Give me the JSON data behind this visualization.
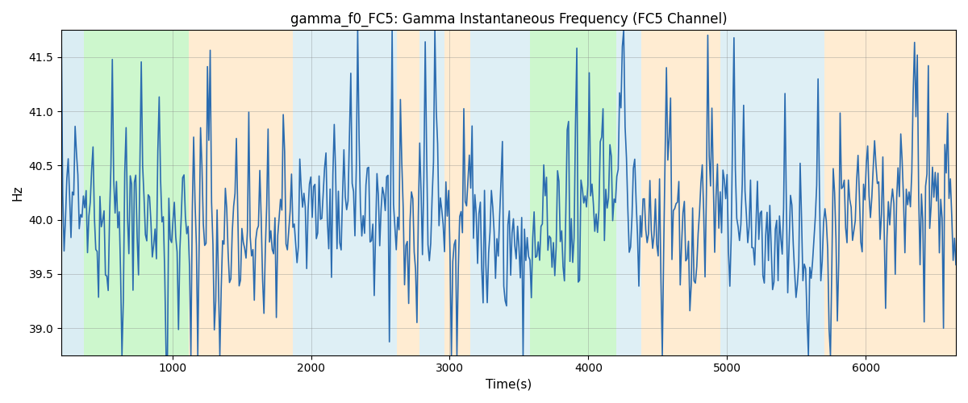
{
  "title": "gamma_f0_FC5: Gamma Instantaneous Frequency (FC5 Channel)",
  "xlabel": "Time(s)",
  "ylabel": "Hz",
  "xlim": [
    200,
    6650
  ],
  "ylim": [
    38.75,
    41.75
  ],
  "xticks": [
    1000,
    2000,
    3000,
    4000,
    5000,
    6000
  ],
  "yticks": [
    39.0,
    39.5,
    40.0,
    40.5,
    41.0,
    41.5
  ],
  "line_color": "#2b6cb0",
  "line_width": 1.2,
  "bg_bands": [
    {
      "xmin": 200,
      "xmax": 360,
      "color": "#add8e6",
      "alpha": 0.45
    },
    {
      "xmin": 360,
      "xmax": 1120,
      "color": "#90ee90",
      "alpha": 0.45
    },
    {
      "xmin": 1120,
      "xmax": 1870,
      "color": "#ffdead",
      "alpha": 0.55
    },
    {
      "xmin": 1870,
      "xmax": 2620,
      "color": "#add8e6",
      "alpha": 0.4
    },
    {
      "xmin": 2620,
      "xmax": 2780,
      "color": "#ffdead",
      "alpha": 0.55
    },
    {
      "xmin": 2780,
      "xmax": 2960,
      "color": "#add8e6",
      "alpha": 0.4
    },
    {
      "xmin": 2960,
      "xmax": 3150,
      "color": "#ffdead",
      "alpha": 0.55
    },
    {
      "xmin": 3150,
      "xmax": 3580,
      "color": "#add8e6",
      "alpha": 0.4
    },
    {
      "xmin": 3580,
      "xmax": 3750,
      "color": "#90ee90",
      "alpha": 0.45
    },
    {
      "xmin": 3750,
      "xmax": 4200,
      "color": "#90ee90",
      "alpha": 0.45
    },
    {
      "xmin": 4200,
      "xmax": 4380,
      "color": "#add8e6",
      "alpha": 0.4
    },
    {
      "xmin": 4380,
      "xmax": 4950,
      "color": "#ffdead",
      "alpha": 0.55
    },
    {
      "xmin": 4950,
      "xmax": 5560,
      "color": "#add8e6",
      "alpha": 0.4
    },
    {
      "xmin": 5560,
      "xmax": 5700,
      "color": "#add8e6",
      "alpha": 0.4
    },
    {
      "xmin": 5700,
      "xmax": 5900,
      "color": "#ffdead",
      "alpha": 0.55
    },
    {
      "xmin": 5900,
      "xmax": 6650,
      "color": "#ffdead",
      "alpha": 0.55
    }
  ],
  "n_points": 650,
  "t_start": 200,
  "t_end": 6650,
  "seed": 7
}
